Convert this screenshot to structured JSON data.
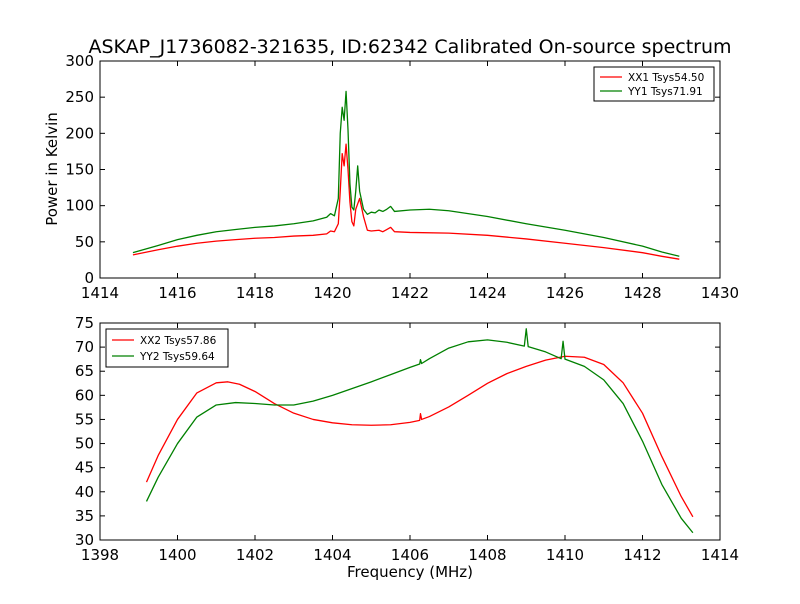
{
  "figure": {
    "title": "ASKAP_J1736082-321635, ID:62342 Calibrated On-source spectrum",
    "shared_xlabel": "Frequency (MHz)"
  },
  "colors": {
    "red": "#ff0000",
    "green": "#008000",
    "axes": "#000000",
    "background": "#ffffff"
  },
  "chart_data": [
    {
      "type": "line",
      "title": "ASKAP_J1736082-321635, ID:62342 Calibrated On-source spectrum",
      "xlabel": "",
      "ylabel": "Power in Kelvin",
      "xlim": [
        1414,
        1430
      ],
      "ylim": [
        0,
        300
      ],
      "xticks": [
        "1414",
        "1416",
        "1418",
        "1420",
        "1422",
        "1424",
        "1426",
        "1428",
        "1430"
      ],
      "yticks": [
        "0",
        "50",
        "100",
        "150",
        "200",
        "250",
        "300"
      ],
      "grid": false,
      "legend_position": "top-right",
      "series": [
        {
          "name": "XX1 Tsys54.50",
          "color": "#ff0000",
          "x": [
            1414.85,
            1415.5,
            1416.0,
            1416.5,
            1417.0,
            1417.5,
            1418.0,
            1418.5,
            1419.0,
            1419.5,
            1419.85,
            1419.95,
            1420.05,
            1420.15,
            1420.2,
            1420.25,
            1420.3,
            1420.35,
            1420.4,
            1420.45,
            1420.5,
            1420.55,
            1420.6,
            1420.7,
            1420.8,
            1420.9,
            1421.0,
            1421.2,
            1421.3,
            1421.4,
            1421.5,
            1421.6,
            1422.0,
            1423.0,
            1424.0,
            1425.0,
            1426.0,
            1427.0,
            1428.0,
            1428.5,
            1428.95
          ],
          "y": [
            32,
            39,
            44,
            48,
            51,
            53,
            55,
            56,
            58,
            59,
            61,
            65,
            64,
            75,
            120,
            172,
            155,
            185,
            150,
            105,
            78,
            72,
            95,
            110,
            85,
            66,
            65,
            66,
            64,
            67,
            70,
            64,
            63,
            62,
            59,
            54,
            48,
            42,
            35,
            30,
            26
          ]
        },
        {
          "name": "YY1 Tsys71.91",
          "color": "#008000",
          "x": [
            1414.85,
            1415.5,
            1416.0,
            1416.5,
            1417.0,
            1417.5,
            1418.0,
            1418.5,
            1419.0,
            1419.5,
            1419.85,
            1419.95,
            1420.05,
            1420.15,
            1420.2,
            1420.25,
            1420.3,
            1420.35,
            1420.4,
            1420.45,
            1420.5,
            1420.55,
            1420.6,
            1420.65,
            1420.7,
            1420.8,
            1420.9,
            1421.0,
            1421.1,
            1421.2,
            1421.3,
            1421.4,
            1421.5,
            1421.6,
            1422.0,
            1422.5,
            1423.0,
            1424.0,
            1425.0,
            1426.0,
            1427.0,
            1428.0,
            1428.5,
            1428.95
          ],
          "y": [
            35,
            45,
            53,
            59,
            64,
            67,
            70,
            72,
            75,
            79,
            84,
            89,
            86,
            110,
            200,
            236,
            218,
            258,
            205,
            130,
            98,
            94,
            120,
            155,
            120,
            95,
            88,
            91,
            90,
            94,
            92,
            95,
            99,
            92,
            94,
            95,
            93,
            85,
            75,
            66,
            56,
            44,
            36,
            30
          ]
        }
      ]
    },
    {
      "type": "line",
      "title": "",
      "xlabel": "Frequency (MHz)",
      "ylabel": "",
      "xlim": [
        1398,
        1414
      ],
      "ylim": [
        30,
        75
      ],
      "xticks": [
        "1398",
        "1400",
        "1402",
        "1404",
        "1406",
        "1408",
        "1410",
        "1412",
        "1414"
      ],
      "yticks": [
        "30",
        "35",
        "40",
        "45",
        "50",
        "55",
        "60",
        "65",
        "70",
        "75"
      ],
      "grid": false,
      "legend_position": "top-left",
      "series": [
        {
          "name": "XX2 Tsys57.86",
          "color": "#ff0000",
          "x": [
            1399.2,
            1399.5,
            1400.0,
            1400.5,
            1401.0,
            1401.3,
            1401.6,
            1402.0,
            1402.5,
            1403.0,
            1403.5,
            1404.0,
            1404.5,
            1405.0,
            1405.5,
            1406.0,
            1406.25,
            1406.27,
            1406.3,
            1406.5,
            1407.0,
            1407.5,
            1408.0,
            1408.5,
            1409.0,
            1409.5,
            1410.0,
            1410.5,
            1411.0,
            1411.5,
            1412.0,
            1412.5,
            1413.0,
            1413.3
          ],
          "y": [
            42,
            47.5,
            55,
            60.5,
            62.6,
            62.8,
            62.3,
            60.8,
            58.3,
            56.3,
            55.0,
            54.3,
            53.9,
            53.8,
            53.9,
            54.4,
            54.8,
            56.2,
            55.0,
            55.6,
            57.6,
            60.0,
            62.5,
            64.5,
            66.0,
            67.3,
            68.1,
            67.9,
            66.4,
            62.6,
            56.3,
            47.3,
            39.0,
            34.8
          ]
        },
        {
          "name": "YY2 Tsys59.64",
          "color": "#008000",
          "x": [
            1399.2,
            1399.5,
            1400.0,
            1400.5,
            1401.0,
            1401.5,
            1402.0,
            1402.5,
            1403.0,
            1403.5,
            1404.0,
            1404.5,
            1405.0,
            1405.5,
            1406.0,
            1406.25,
            1406.27,
            1406.3,
            1406.5,
            1407.0,
            1407.5,
            1408.0,
            1408.5,
            1408.95,
            1409.0,
            1409.05,
            1409.5,
            1409.9,
            1409.95,
            1410.0,
            1410.5,
            1411.0,
            1411.5,
            1412.0,
            1412.5,
            1413.0,
            1413.3
          ],
          "y": [
            38,
            43,
            50,
            55.5,
            58,
            58.5,
            58.3,
            58.0,
            58.0,
            58.8,
            60.0,
            61.4,
            62.8,
            64.3,
            65.8,
            66.5,
            67.4,
            66.6,
            67.6,
            69.8,
            71.1,
            71.5,
            71.0,
            70.2,
            73.8,
            70.1,
            69.0,
            67.6,
            71.2,
            67.5,
            66.0,
            63.2,
            58.3,
            50.5,
            41.5,
            34.5,
            31.5
          ]
        }
      ]
    }
  ]
}
